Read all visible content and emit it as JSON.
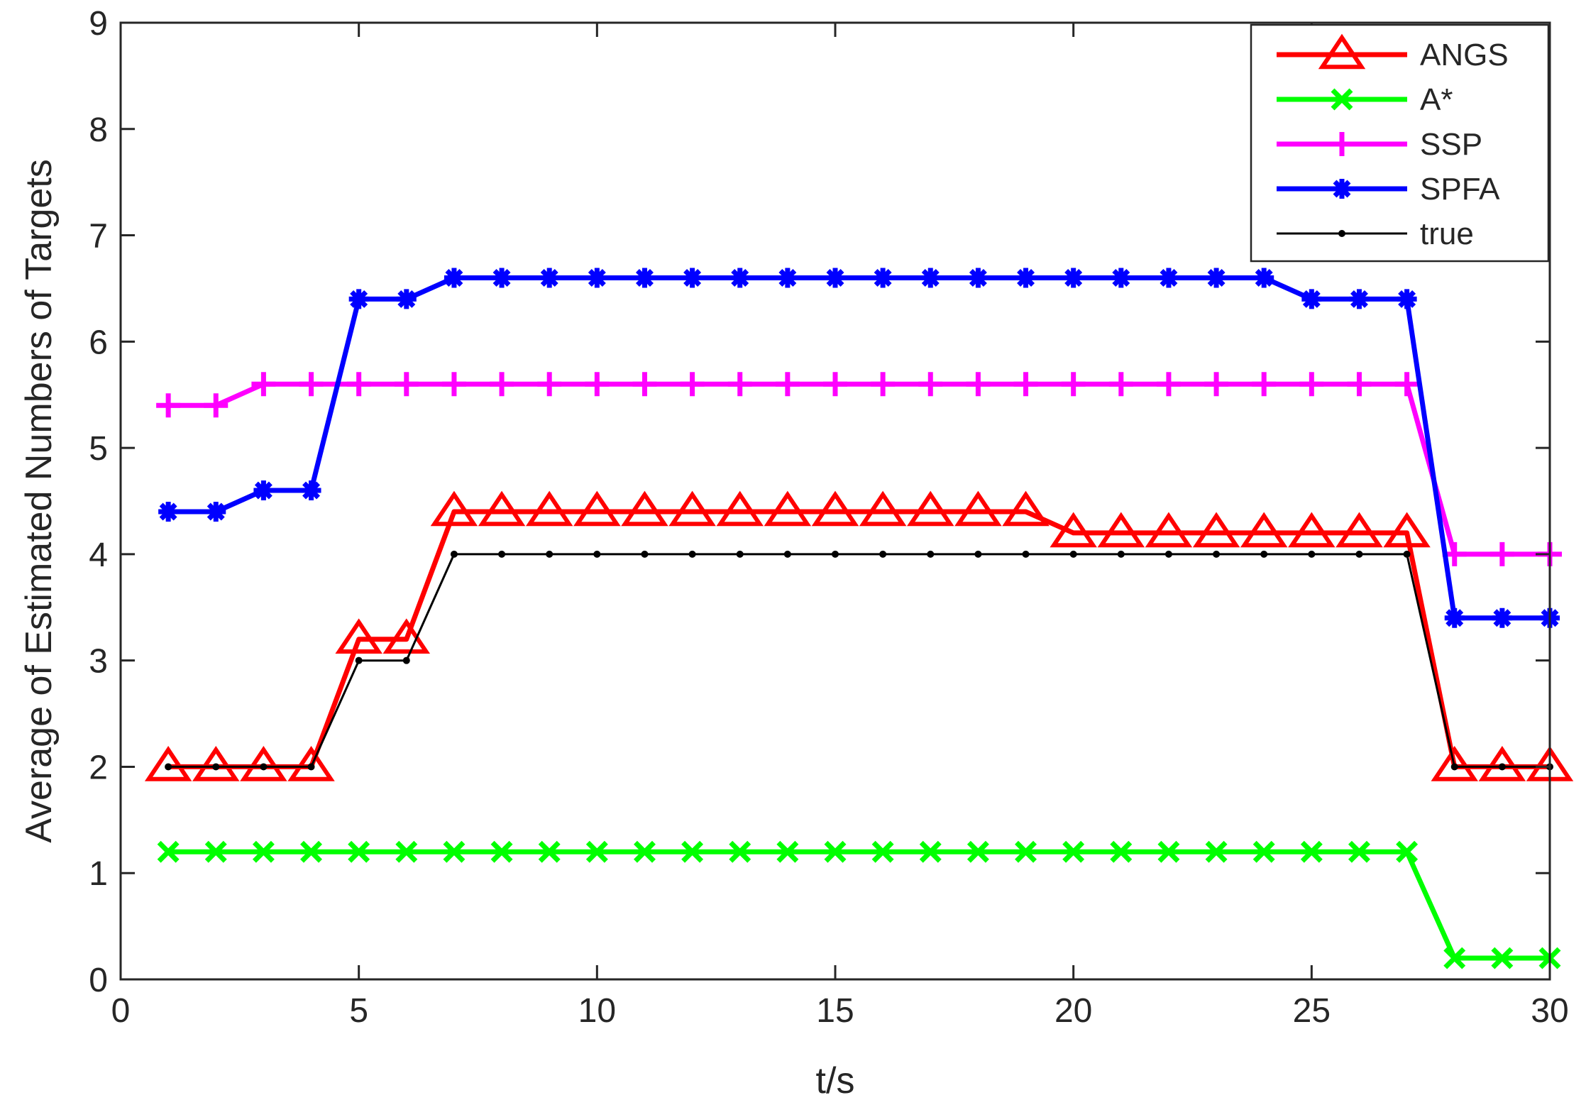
{
  "chart_data": {
    "type": "line",
    "title": "",
    "xlabel": "t/s",
    "ylabel": "Average of Estimated Numbers of Targets",
    "xlim": [
      0,
      30
    ],
    "ylim": [
      0,
      9
    ],
    "xticks": [
      "0",
      "5",
      "10",
      "15",
      "20",
      "25",
      "30"
    ],
    "yticks": [
      "0",
      "1",
      "2",
      "3",
      "4",
      "5",
      "6",
      "7",
      "8",
      "9"
    ],
    "grid": false,
    "legend_position": "top-right",
    "x": [
      1,
      2,
      3,
      4,
      5,
      6,
      7,
      8,
      9,
      10,
      11,
      12,
      13,
      14,
      15,
      16,
      17,
      18,
      19,
      20,
      21,
      22,
      23,
      24,
      25,
      26,
      27,
      28,
      29,
      30
    ],
    "series": [
      {
        "name": "ANGS",
        "color": "#ff0000",
        "marker": "triangle",
        "values": [
          2,
          2,
          2,
          2,
          3.2,
          3.2,
          4.4,
          4.4,
          4.4,
          4.4,
          4.4,
          4.4,
          4.4,
          4.4,
          4.4,
          4.4,
          4.4,
          4.4,
          4.4,
          4.2,
          4.2,
          4.2,
          4.2,
          4.2,
          4.2,
          4.2,
          4.2,
          2,
          2,
          2
        ]
      },
      {
        "name": "A*",
        "color": "#00ff00",
        "marker": "x",
        "values": [
          1.2,
          1.2,
          1.2,
          1.2,
          1.2,
          1.2,
          1.2,
          1.2,
          1.2,
          1.2,
          1.2,
          1.2,
          1.2,
          1.2,
          1.2,
          1.2,
          1.2,
          1.2,
          1.2,
          1.2,
          1.2,
          1.2,
          1.2,
          1.2,
          1.2,
          1.2,
          1.2,
          0.2,
          0.2,
          0.2
        ]
      },
      {
        "name": "SSP",
        "color": "#ff00ff",
        "marker": "plus",
        "values": [
          5.4,
          5.4,
          5.6,
          5.6,
          5.6,
          5.6,
          5.6,
          5.6,
          5.6,
          5.6,
          5.6,
          5.6,
          5.6,
          5.6,
          5.6,
          5.6,
          5.6,
          5.6,
          5.6,
          5.6,
          5.6,
          5.6,
          5.6,
          5.6,
          5.6,
          5.6,
          5.6,
          4,
          4,
          4
        ]
      },
      {
        "name": "SPFA",
        "color": "#0000ff",
        "marker": "asterisk",
        "values": [
          4.4,
          4.4,
          4.6,
          4.6,
          6.4,
          6.4,
          6.6,
          6.6,
          6.6,
          6.6,
          6.6,
          6.6,
          6.6,
          6.6,
          6.6,
          6.6,
          6.6,
          6.6,
          6.6,
          6.6,
          6.6,
          6.6,
          6.6,
          6.6,
          6.4,
          6.4,
          6.4,
          3.4,
          3.4,
          3.4
        ]
      },
      {
        "name": "true",
        "color": "#000000",
        "marker": "dot",
        "values": [
          2,
          2,
          2,
          2,
          3,
          3,
          4,
          4,
          4,
          4,
          4,
          4,
          4,
          4,
          4,
          4,
          4,
          4,
          4,
          4,
          4,
          4,
          4,
          4,
          4,
          4,
          4,
          2,
          2,
          2
        ]
      }
    ]
  }
}
